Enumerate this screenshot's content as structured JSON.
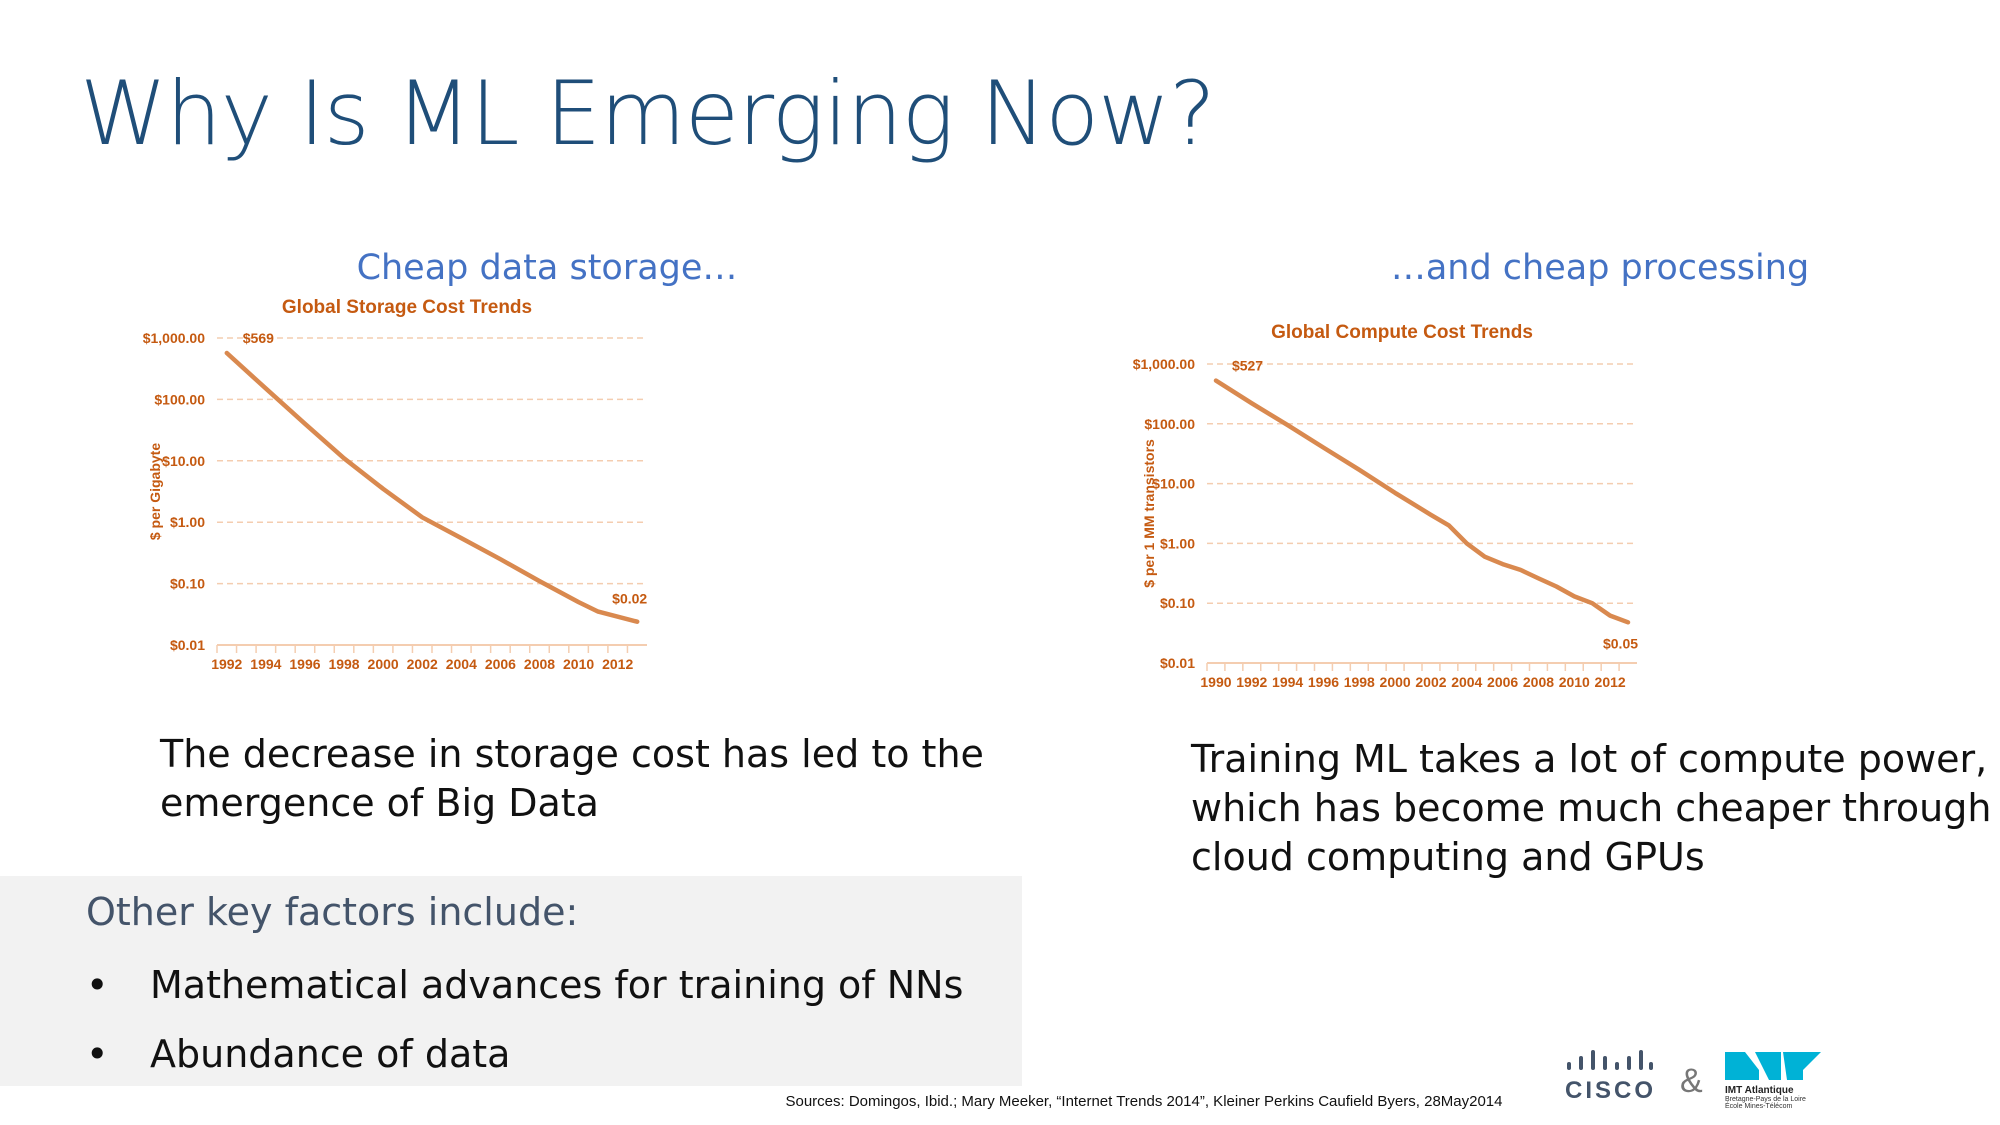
{
  "slide": {
    "title": "Why Is ML Emerging Now?",
    "left_heading": "Cheap data storage…",
    "right_heading": "…and cheap processing",
    "left_text": [
      "The decrease in storage cost has led to the",
      "emergence of Big Data"
    ],
    "right_text": [
      "Training ML takes a lot of compute power,",
      "which has become much cheaper through",
      "cloud computing and GPUs"
    ],
    "other_heading": "Other key factors include:",
    "bullets": [
      "Mathematical advances for training of NNs",
      "Abundance of data"
    ],
    "bullet_char": "•",
    "sources": "Sources:  Domingos, Ibid.; Mary Meeker, “Internet Trends 2014”, Kleiner Perkins Caufield Byers, 28May2014",
    "logos": {
      "cisco": "CISCO",
      "amp": "&",
      "imt_name": "IMT Atlantique",
      "imt_line2": "Bretagne-Pays de la Loire",
      "imt_line3": "École Mines-Télécom"
    },
    "colors": {
      "title": "#1f4e79",
      "heading": "#4472c4",
      "chart_text": "#c55a11",
      "line": "#d9894f",
      "grid": "#f4cdb0",
      "box": "#f2f2f2"
    }
  },
  "chart_data": [
    {
      "type": "line",
      "title": "Global Storage Cost Trends",
      "ylabel": "$ per Gigabyte",
      "xlabel": "",
      "yscale": "log",
      "ylim": [
        0.01,
        1000
      ],
      "yticks": [
        "$1,000.00",
        "$100.00",
        "$10.00",
        "$1.00",
        "$0.10",
        "$0.01"
      ],
      "xticks": [
        "1992",
        "1994",
        "1996",
        "1998",
        "2000",
        "2002",
        "2004",
        "2006",
        "2008",
        "2010",
        "2012"
      ],
      "xlim": [
        1991.5,
        2013.5
      ],
      "x": [
        1992,
        1994,
        1996,
        1998,
        2000,
        2002,
        2004,
        2006,
        2008,
        2010,
        2011,
        2013
      ],
      "values": [
        569,
        150,
        40,
        11,
        3.5,
        1.2,
        0.55,
        0.25,
        0.11,
        0.05,
        0.035,
        0.024
      ],
      "annotations": [
        {
          "text": "$569",
          "x": 1992,
          "y": 569
        },
        {
          "text": "$0.02",
          "x": 2013,
          "y": 0.024
        }
      ],
      "grid": true
    },
    {
      "type": "line",
      "title": "Global Compute Cost Trends",
      "ylabel": "$ per 1 MM transistors",
      "xlabel": "",
      "yscale": "log",
      "ylim": [
        0.01,
        1000
      ],
      "yticks": [
        "$1,000.00",
        "$100.00",
        "$10.00",
        "$1.00",
        "$0.10",
        "$0.01"
      ],
      "xticks": [
        "1990",
        "1992",
        "1994",
        "1996",
        "1998",
        "2000",
        "2002",
        "2004",
        "2006",
        "2008",
        "2010",
        "2012"
      ],
      "xlim": [
        1989.5,
        2013.5
      ],
      "x": [
        1990,
        1992,
        1994,
        1996,
        1998,
        2000,
        2002,
        2003,
        2004,
        2005,
        2006,
        2007,
        2008,
        2009,
        2010,
        2011,
        2012,
        2013
      ],
      "values": [
        527,
        220,
        95,
        40,
        17,
        7,
        3,
        2,
        1.0,
        0.6,
        0.45,
        0.36,
        0.26,
        0.19,
        0.13,
        0.1,
        0.062,
        0.048
      ],
      "annotations": [
        {
          "text": "$527",
          "x": 1990,
          "y": 527
        },
        {
          "text": "$0.05",
          "x": 2013,
          "y": 0.048
        }
      ],
      "grid": true
    }
  ]
}
